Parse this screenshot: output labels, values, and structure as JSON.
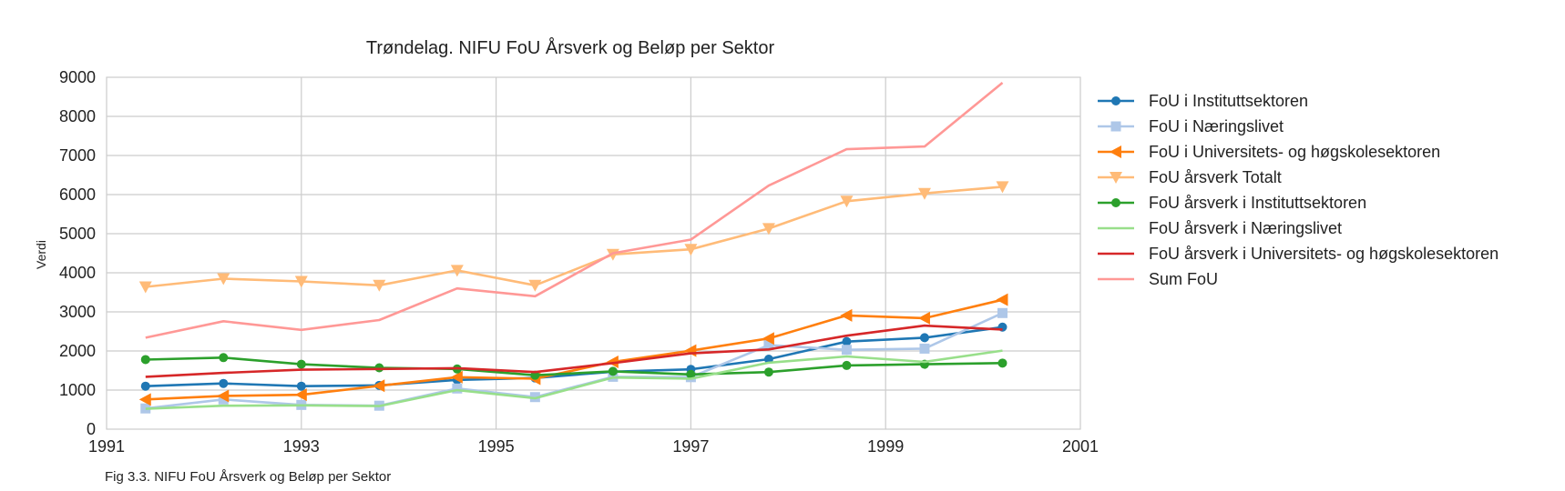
{
  "caption": "Fig 3.3. NIFU FoU Årsverk og Beløp per Sektor",
  "chart_data": {
    "type": "line",
    "title": "Trøndelag. NIFU FoU Årsverk og Beløp per Sektor",
    "xlabel": "",
    "ylabel": "Verdi",
    "xlim": [
      1991,
      2001
    ],
    "ylim": [
      0,
      9000
    ],
    "x_ticks": [
      "1991",
      "1993",
      "1995",
      "1997",
      "1999",
      "2001"
    ],
    "y_ticks": [
      "0",
      "1000",
      "2000",
      "3000",
      "4000",
      "5000",
      "6000",
      "7000",
      "8000",
      "9000"
    ],
    "grid": true,
    "legend_position": "outside-right",
    "x": [
      1991.4,
      1992.2,
      1993.0,
      1993.8,
      1994.6,
      1995.4,
      1996.2,
      1997.0,
      1997.8,
      1998.6,
      1999.4,
      2000.2
    ],
    "series": [
      {
        "name": "FoU i Instituttsektoren",
        "color": "#1f77b4",
        "marker": "circle",
        "values": [
          1100,
          1170,
          1100,
          1120,
          null,
          null,
          null,
          1530,
          1790,
          2240,
          2340,
          2610
        ]
      },
      {
        "name": "FoU i Næringslivet",
        "color": "#aec7e8",
        "marker": "square",
        "values": [
          530,
          760,
          620,
          600,
          1040,
          820,
          1340,
          1330,
          2150,
          2030,
          2060,
          2970
        ]
      },
      {
        "name": "FoU i Universitets- og høgskolesektoren",
        "color": "#ff7f0e",
        "marker": "triangle-left",
        "values": [
          760,
          850,
          880,
          1110,
          1330,
          1290,
          1720,
          2010,
          2320,
          2910,
          2840,
          3310
        ]
      },
      {
        "name": "FoU årsverk Totalt",
        "color": "#ffbb78",
        "marker": "triangle-down",
        "values": [
          3640,
          3850,
          3780,
          3680,
          4060,
          3680,
          4470,
          4600,
          5130,
          5830,
          6030,
          6200
        ]
      },
      {
        "name": "FoU årsverk i Instituttsektoren",
        "color": "#2ca02c",
        "marker": "circle",
        "values": [
          1780,
          1830,
          1660,
          1570,
          1540,
          1380,
          1480,
          1400,
          1460,
          1630,
          1660,
          1690
        ]
      },
      {
        "name": "FoU årsverk i Næringslivet",
        "color": "#98df8a",
        "marker": "none",
        "values": [
          520,
          600,
          610,
          590,
          1000,
          790,
          1320,
          1290,
          1700,
          1860,
          1720,
          2010
        ]
      },
      {
        "name": "FoU årsverk i Universitets- og høgskolesektoren",
        "color": "#d62728",
        "marker": "none",
        "values": [
          1340,
          1440,
          1520,
          1540,
          1560,
          1460,
          1690,
          1940,
          2040,
          2390,
          2650,
          2550
        ]
      },
      {
        "name": "Sum FoU",
        "color": "#ff9896",
        "marker": "none",
        "values": [
          2340,
          2760,
          2540,
          2790,
          3600,
          3400,
          4500,
          4850,
          6230,
          7160,
          7230,
          8860
        ]
      }
    ],
    "instituttsektoren_extra_points": {
      "x": [
        1994.6,
        1995.4,
        1996.2
      ],
      "values": [
        1260,
        1310,
        1470
      ]
    }
  }
}
